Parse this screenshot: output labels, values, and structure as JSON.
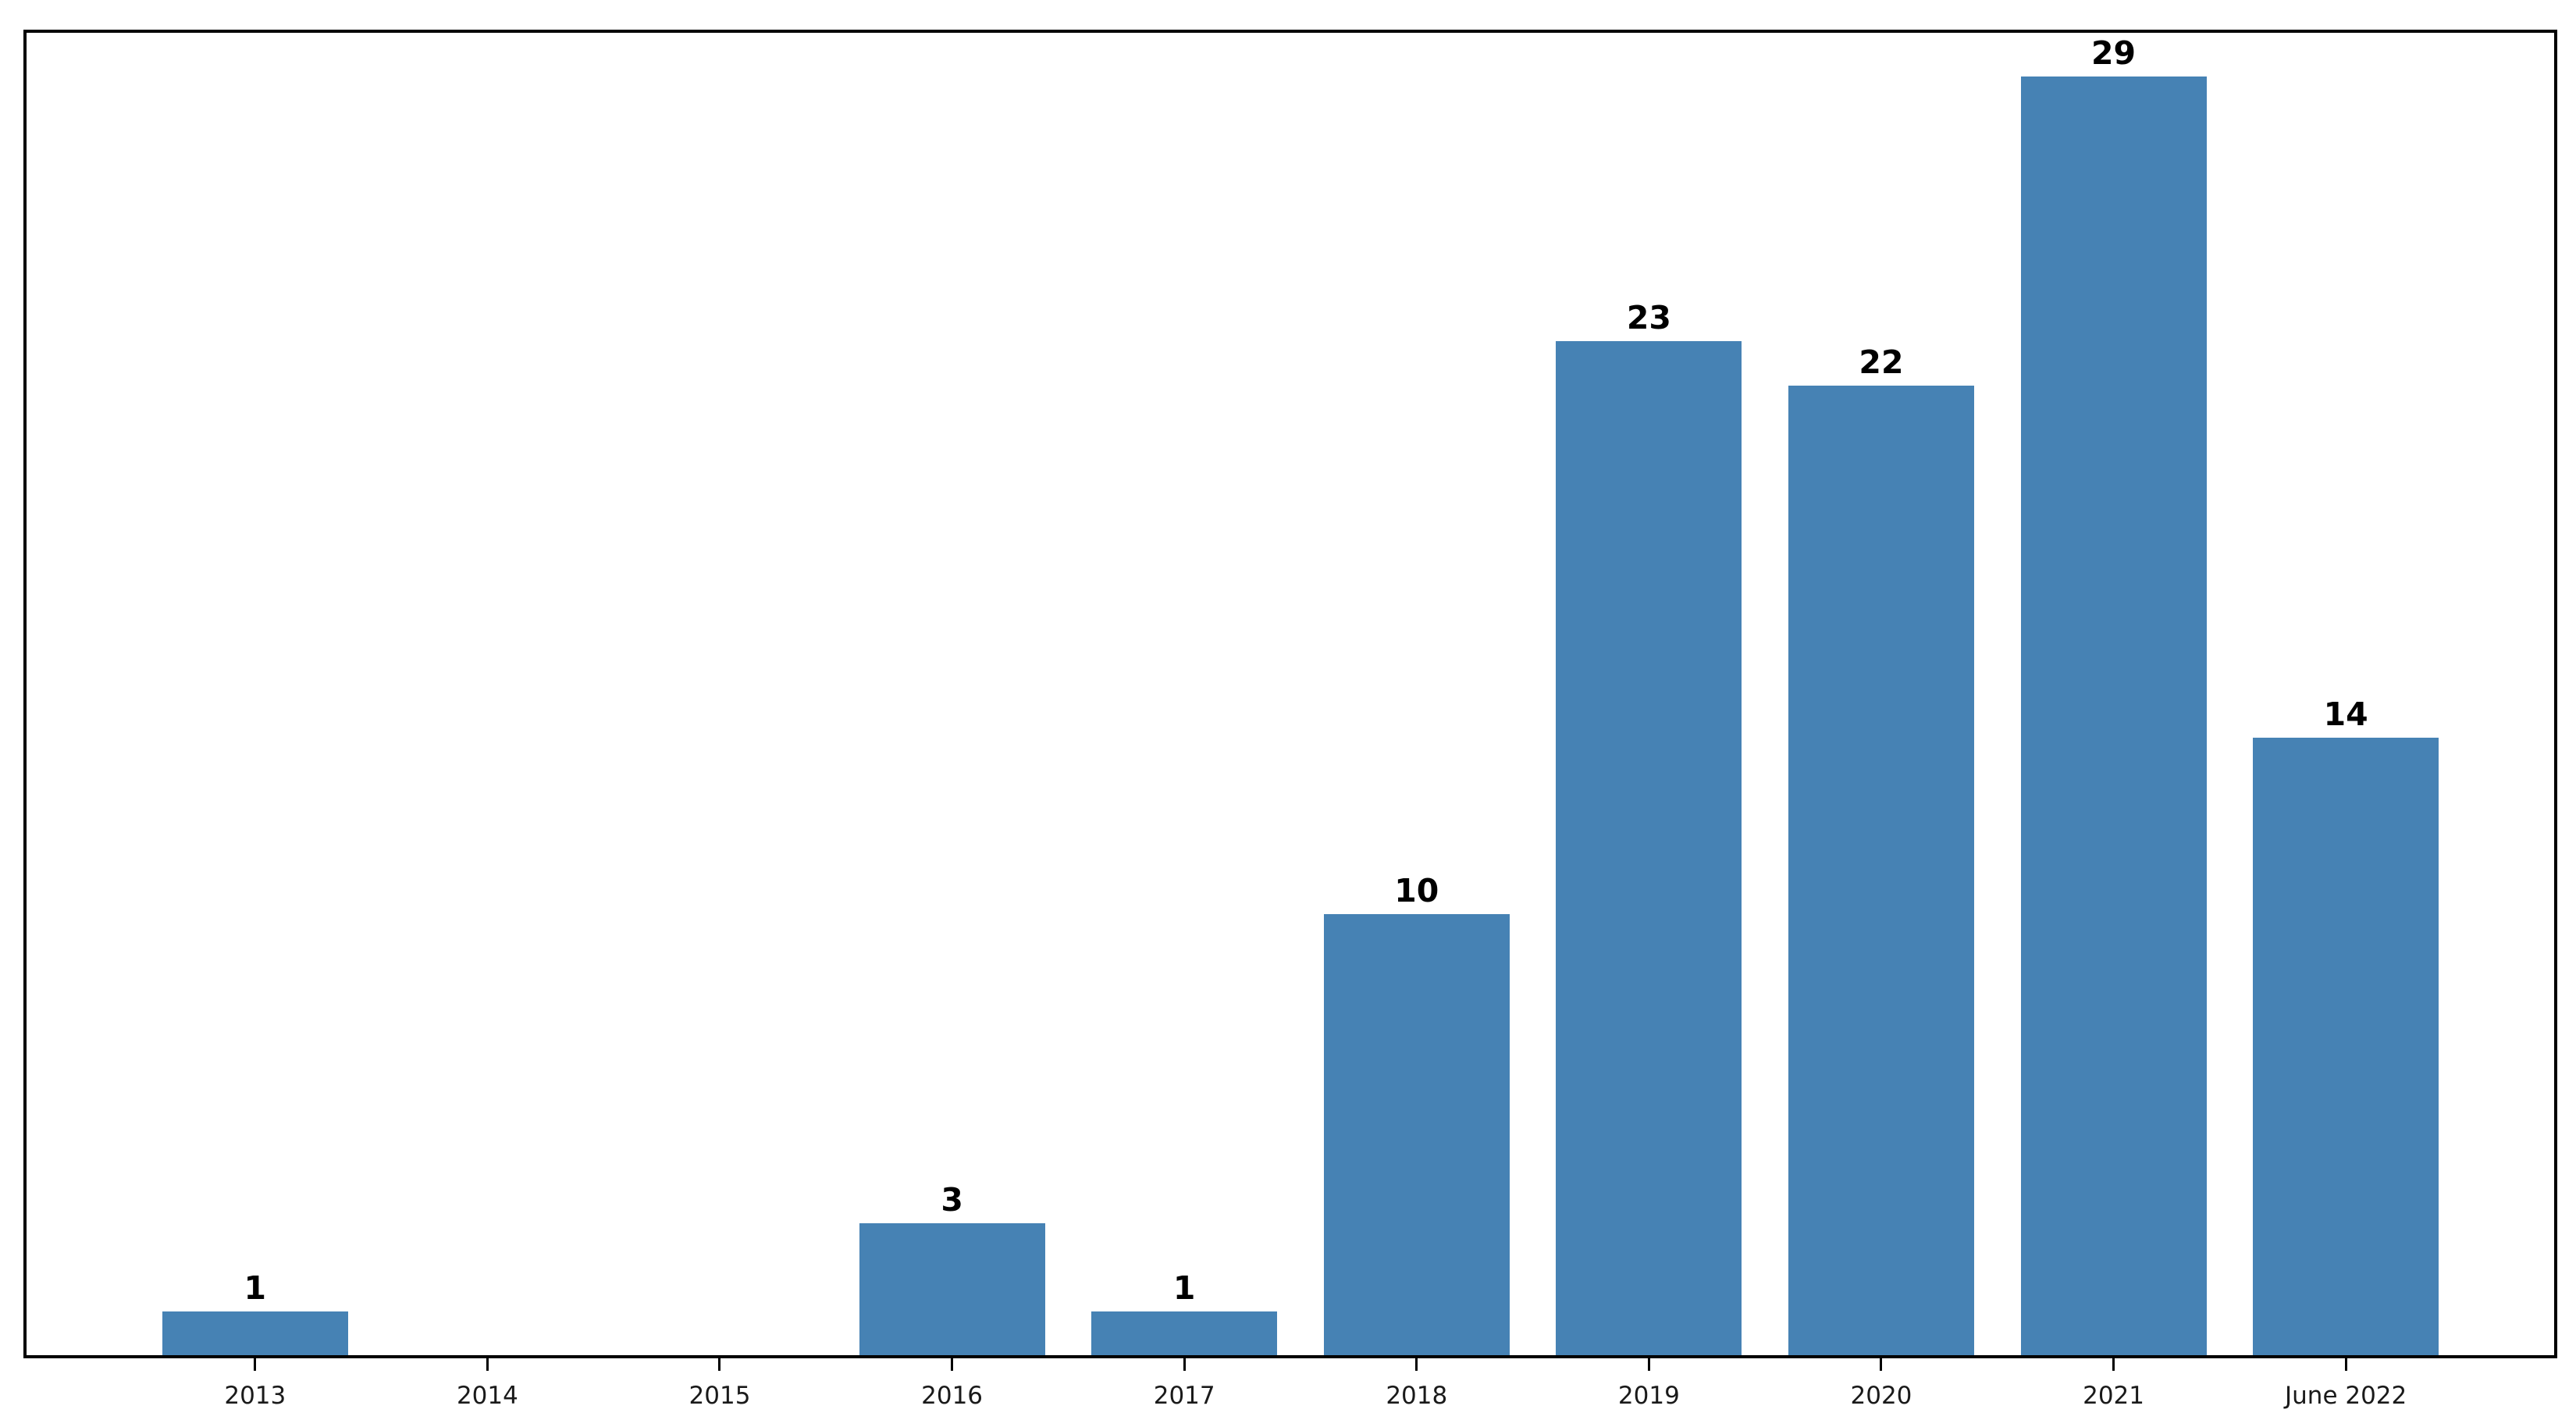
{
  "chart_data": {
    "type": "bar",
    "categories": [
      "2013",
      "2014",
      "2015",
      "2016",
      "2017",
      "2018",
      "2019",
      "2020",
      "2021",
      "June 2022"
    ],
    "values": [
      1,
      0,
      0,
      3,
      1,
      10,
      23,
      22,
      29,
      14
    ],
    "bar_labels": [
      "1",
      "",
      "",
      "3",
      "1",
      "10",
      "23",
      "22",
      "29",
      "14"
    ],
    "title": "",
    "xlabel": "",
    "ylabel": "",
    "ylim": [
      0,
      30
    ],
    "grid": false,
    "legend": false,
    "bar_color": "#4682B4",
    "frame_color": "#000000",
    "label_color": "#000000",
    "tick_label_color": "#1a1a1a",
    "background_color": "#ffffff",
    "bar_width_fraction": 0.8
  }
}
